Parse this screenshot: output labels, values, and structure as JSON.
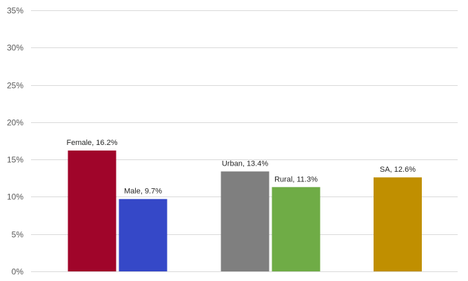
{
  "chart_data": {
    "type": "bar",
    "categories": [
      "Female",
      "Male",
      "Urban",
      "Rural",
      "SA"
    ],
    "values": [
      16.2,
      9.7,
      13.4,
      11.3,
      12.6
    ],
    "data_labels": [
      "Female, 16.2%",
      "Male, 9.7%",
      "Urban, 13.4%",
      "Rural, 11.3%",
      "SA, 12.6%"
    ],
    "colors": [
      "#a0052a",
      "#3548c8",
      "#7f7f7f",
      "#6fac46",
      "#c08f00"
    ],
    "groups": [
      [
        "Female",
        "Male"
      ],
      [
        "Urban",
        "Rural"
      ],
      [
        "SA"
      ]
    ],
    "title": "",
    "xlabel": "",
    "ylabel": "",
    "ylim": [
      0,
      35
    ],
    "y_ticks": [
      0,
      5,
      10,
      15,
      20,
      25,
      30,
      35
    ],
    "y_tick_labels": [
      "0%",
      "5%",
      "10%",
      "15%",
      "20%",
      "25%",
      "30%",
      "35%"
    ],
    "grid": true,
    "legend": "none"
  }
}
